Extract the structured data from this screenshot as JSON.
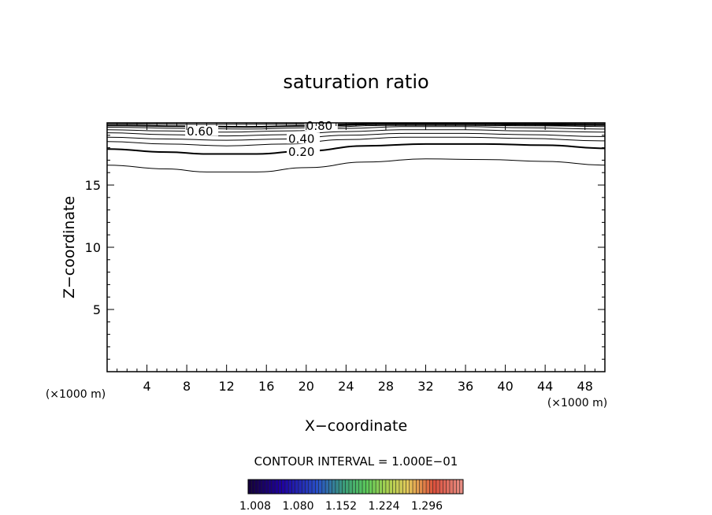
{
  "chart_data": {
    "type": "contour",
    "title": "saturation ratio",
    "xlabel": "X−coordinate",
    "ylabel": "Z−coordinate",
    "x_unit_left": "(×1000 m)",
    "x_unit_right": "(×1000 m)",
    "xlim": [
      0,
      50
    ],
    "ylim": [
      0,
      20
    ],
    "x_ticks": [
      4,
      8,
      12,
      16,
      20,
      24,
      28,
      32,
      36,
      40,
      44,
      48
    ],
    "y_ticks": [
      5,
      10,
      15
    ],
    "x_tick_labels": [
      "4",
      "8",
      "12",
      "16",
      "20",
      "24",
      "28",
      "32",
      "36",
      "40",
      "44",
      "48"
    ],
    "y_tick_labels": [
      "5",
      "10",
      "15"
    ],
    "contour_interval_text": "CONTOUR INTERVAL = 1.000E−01",
    "colorbar_labels": [
      "1.008",
      "1.080",
      "1.152",
      "1.224",
      "1.296"
    ],
    "contours": [
      {
        "level": 0.1,
        "label": "",
        "bold": false,
        "points": [
          [
            0,
            16.6
          ],
          [
            6,
            16.3
          ],
          [
            10,
            16.05
          ],
          [
            15,
            16.05
          ],
          [
            20,
            16.4
          ],
          [
            26,
            16.85
          ],
          [
            32,
            17.1
          ],
          [
            38,
            17.05
          ],
          [
            44,
            16.9
          ],
          [
            50,
            16.6
          ]
        ]
      },
      {
        "level": 0.2,
        "label": "0.20",
        "bold": true,
        "points": [
          [
            0,
            17.9
          ],
          [
            6,
            17.65
          ],
          [
            10,
            17.5
          ],
          [
            15,
            17.5
          ],
          [
            20,
            17.75
          ],
          [
            26,
            18.15
          ],
          [
            32,
            18.3
          ],
          [
            38,
            18.3
          ],
          [
            44,
            18.2
          ],
          [
            50,
            17.95
          ]
        ]
      },
      {
        "level": 0.3,
        "label": "",
        "bold": false,
        "points": [
          [
            0,
            18.5
          ],
          [
            6,
            18.3
          ],
          [
            12,
            18.15
          ],
          [
            18,
            18.3
          ],
          [
            24,
            18.65
          ],
          [
            30,
            18.85
          ],
          [
            36,
            18.85
          ],
          [
            42,
            18.75
          ],
          [
            50,
            18.55
          ]
        ]
      },
      {
        "level": 0.4,
        "label": "0.40",
        "bold": false,
        "points": [
          [
            0,
            18.85
          ],
          [
            6,
            18.7
          ],
          [
            12,
            18.6
          ],
          [
            18,
            18.7
          ],
          [
            24,
            19.0
          ],
          [
            30,
            19.15
          ],
          [
            36,
            19.15
          ],
          [
            42,
            19.05
          ],
          [
            50,
            18.9
          ]
        ]
      },
      {
        "level": 0.5,
        "label": "",
        "bold": false,
        "points": [
          [
            0,
            19.2
          ],
          [
            6,
            19.05
          ],
          [
            12,
            18.95
          ],
          [
            18,
            19.05
          ],
          [
            24,
            19.3
          ],
          [
            30,
            19.45
          ],
          [
            36,
            19.45
          ],
          [
            42,
            19.35
          ],
          [
            50,
            19.25
          ]
        ]
      },
      {
        "level": 0.6,
        "label": "0.60",
        "bold": false,
        "points": [
          [
            0,
            19.45
          ],
          [
            6,
            19.35
          ],
          [
            12,
            19.25
          ],
          [
            18,
            19.35
          ],
          [
            24,
            19.55
          ],
          [
            30,
            19.7
          ],
          [
            36,
            19.7
          ],
          [
            42,
            19.6
          ],
          [
            50,
            19.5
          ]
        ]
      },
      {
        "level": 0.7,
        "label": "",
        "bold": false,
        "points": [
          [
            0,
            19.65
          ],
          [
            8,
            19.55
          ],
          [
            14,
            19.5
          ],
          [
            20,
            19.6
          ],
          [
            28,
            19.8
          ],
          [
            36,
            19.8
          ],
          [
            44,
            19.75
          ],
          [
            50,
            19.7
          ]
        ]
      },
      {
        "level": 0.8,
        "label": "0.80",
        "bold": true,
        "points": [
          [
            0,
            19.8
          ],
          [
            8,
            19.72
          ],
          [
            14,
            19.68
          ],
          [
            20,
            19.75
          ],
          [
            28,
            19.9
          ],
          [
            36,
            19.9
          ],
          [
            44,
            19.85
          ],
          [
            50,
            19.82
          ]
        ]
      },
      {
        "level": 0.9,
        "label": "",
        "bold": false,
        "points": [
          [
            0,
            19.92
          ],
          [
            10,
            19.88
          ],
          [
            20,
            19.9
          ],
          [
            30,
            19.96
          ],
          [
            40,
            19.95
          ],
          [
            50,
            19.93
          ]
        ]
      }
    ]
  }
}
